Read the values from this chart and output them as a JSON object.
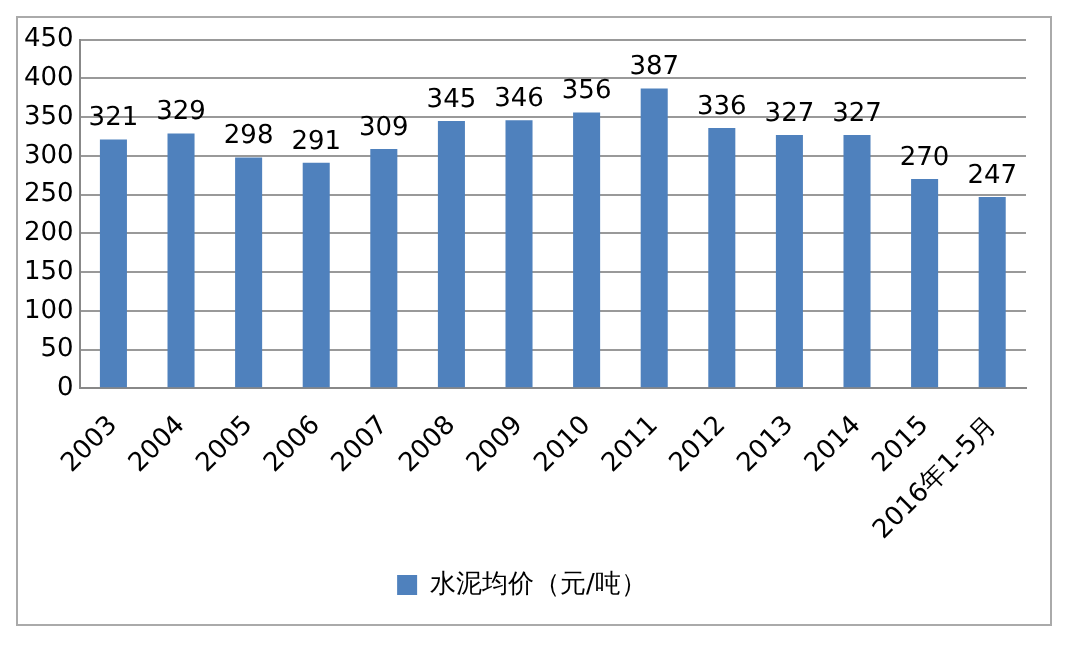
{
  "chart_data": {
    "type": "bar",
    "categories": [
      "2003",
      "2004",
      "2005",
      "2006",
      "2007",
      "2008",
      "2009",
      "2010",
      "2011",
      "2012",
      "2013",
      "2014",
      "2015",
      "2016年1-5月"
    ],
    "series": [
      {
        "name": "水泥均价（元/吨）",
        "color": "#4f81bd",
        "values": [
          321,
          329,
          298,
          291,
          309,
          345,
          346,
          356,
          387,
          336,
          327,
          327,
          270,
          247
        ]
      }
    ],
    "ylim": [
      0,
      450
    ],
    "yticks": [
      0,
      50,
      100,
      150,
      200,
      250,
      300,
      350,
      400,
      450
    ],
    "grid": "y",
    "legend": "bottom",
    "data_labels": true
  }
}
